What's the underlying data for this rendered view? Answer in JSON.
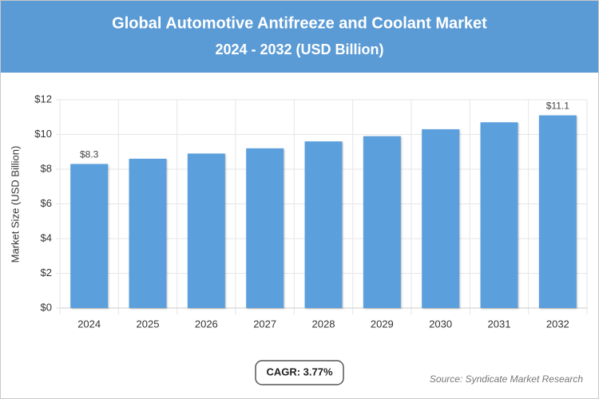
{
  "chart_data": {
    "type": "bar",
    "title": "Global Automotive Antifreeze and Coolant Market",
    "subtitle": "2024 - 2032 (USD Billion)",
    "y_axis_label": "Market Size (USD Billion)",
    "categories": [
      "2024",
      "2025",
      "2026",
      "2027",
      "2028",
      "2029",
      "2030",
      "2031",
      "2032"
    ],
    "values": [
      8.3,
      8.6,
      8.9,
      9.2,
      9.6,
      9.9,
      10.3,
      10.7,
      11.1
    ],
    "value_labels": [
      "$8.3",
      null,
      null,
      null,
      null,
      null,
      null,
      null,
      "$11.1"
    ],
    "color": "#5b9fdc",
    "ylim": [
      0,
      12
    ],
    "yticks": [
      {
        "value": 0,
        "label": "$0"
      },
      {
        "value": 2,
        "label": "$2"
      },
      {
        "value": 4,
        "label": "$4"
      },
      {
        "value": 6,
        "label": "$6"
      },
      {
        "value": 8,
        "label": "$8"
      },
      {
        "value": 10,
        "label": "$10"
      },
      {
        "value": 12,
        "label": "$12"
      }
    ],
    "grid": true,
    "cagr_label": "CAGR: 3.77%",
    "source": "Source: Syndicate Market Research"
  }
}
